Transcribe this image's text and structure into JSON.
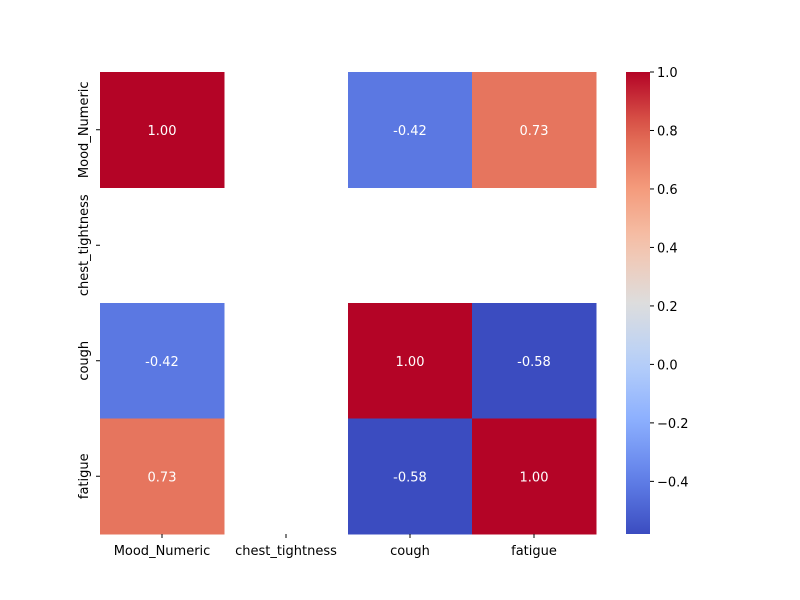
{
  "chart_data": {
    "type": "heatmap",
    "title": "",
    "xlabel": "",
    "ylabel": "",
    "x_categories": [
      "Mood_Numeric",
      "chest_tightness",
      "cough",
      "fatigue"
    ],
    "y_categories": [
      "Mood_Numeric",
      "chest_tightness",
      "cough",
      "fatigue"
    ],
    "matrix": [
      [
        1.0,
        null,
        -0.42,
        0.73
      ],
      [
        null,
        null,
        null,
        null
      ],
      [
        -0.42,
        null,
        1.0,
        -0.58
      ],
      [
        0.73,
        null,
        -0.58,
        1.0
      ]
    ],
    "cell_labels": [
      [
        "1.00",
        "",
        "-0.42",
        "0.73"
      ],
      [
        "",
        "",
        "",
        ""
      ],
      [
        "-0.42",
        "",
        "1.00",
        "-0.58"
      ],
      [
        "0.73",
        "",
        "-0.58",
        "1.00"
      ]
    ],
    "colormap": "coolwarm",
    "colorbar": {
      "vmin": -0.58,
      "vmax": 1.0,
      "ticks": [
        -0.4,
        -0.2,
        0.0,
        0.2,
        0.4,
        0.6,
        0.8,
        1.0
      ],
      "tick_labels": [
        "−0.4",
        "−0.2",
        "0.0",
        "0.2",
        "0.4",
        "0.6",
        "0.8",
        "1.0"
      ]
    }
  }
}
